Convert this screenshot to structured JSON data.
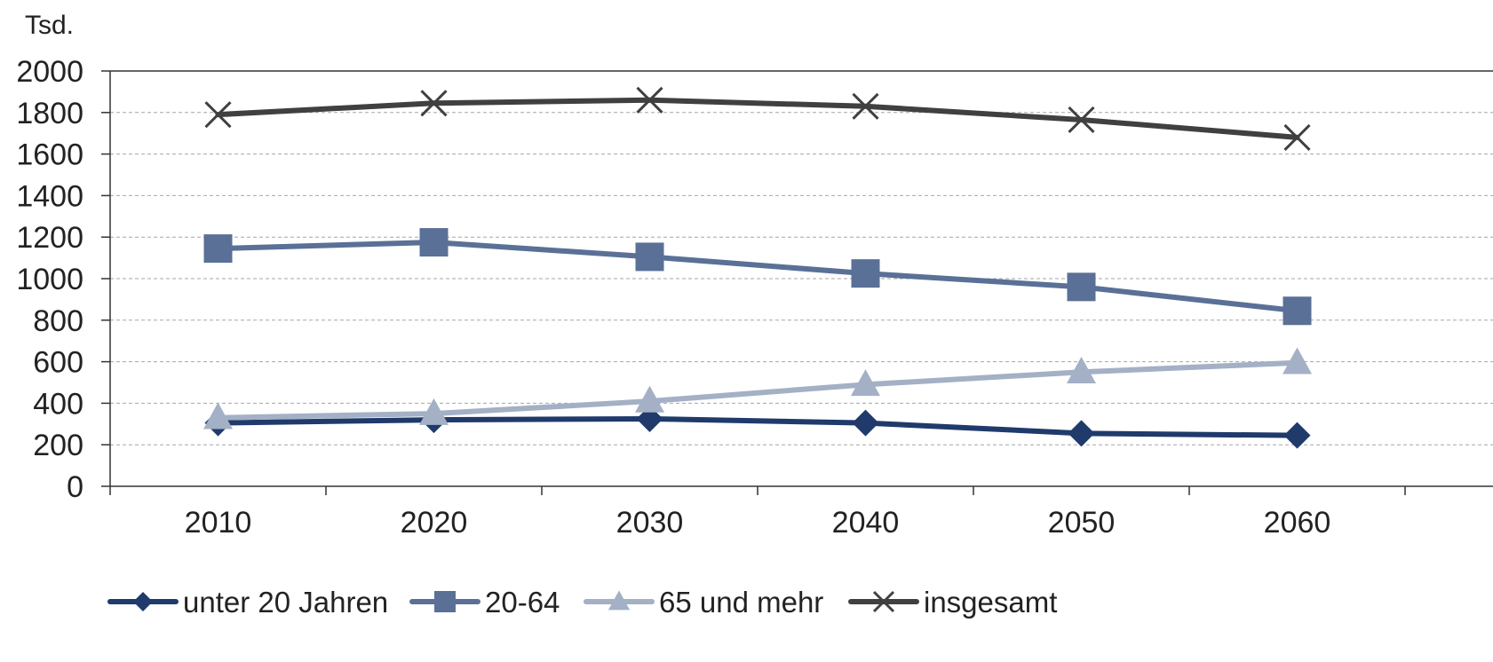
{
  "chart_data": {
    "type": "line",
    "unit_label": "Tsd.",
    "categories": [
      "2010",
      "2020",
      "2030",
      "2040",
      "2050",
      "2060"
    ],
    "ylim": [
      0,
      2000
    ],
    "y_ticks": [
      "0",
      "200",
      "400",
      "600",
      "800",
      "1000",
      "1200",
      "1400",
      "1600",
      "1800",
      "2000"
    ],
    "grid": true,
    "legend_position": "bottom",
    "series": [
      {
        "name": "unter 20 Jahren",
        "color": "#1f3a6b",
        "marker": "diamond",
        "values": [
          305,
          320,
          325,
          305,
          255,
          245
        ]
      },
      {
        "name": "20-64",
        "color": "#5a7096",
        "marker": "square",
        "values": [
          1145,
          1175,
          1105,
          1025,
          960,
          845
        ]
      },
      {
        "name": "65 und mehr",
        "color": "#a3b0c5",
        "marker": "triangle",
        "values": [
          330,
          350,
          410,
          490,
          550,
          595
        ]
      },
      {
        "name": "insgesamt",
        "color": "#404040",
        "marker": "x",
        "values": [
          1790,
          1845,
          1860,
          1830,
          1765,
          1680
        ]
      }
    ]
  }
}
